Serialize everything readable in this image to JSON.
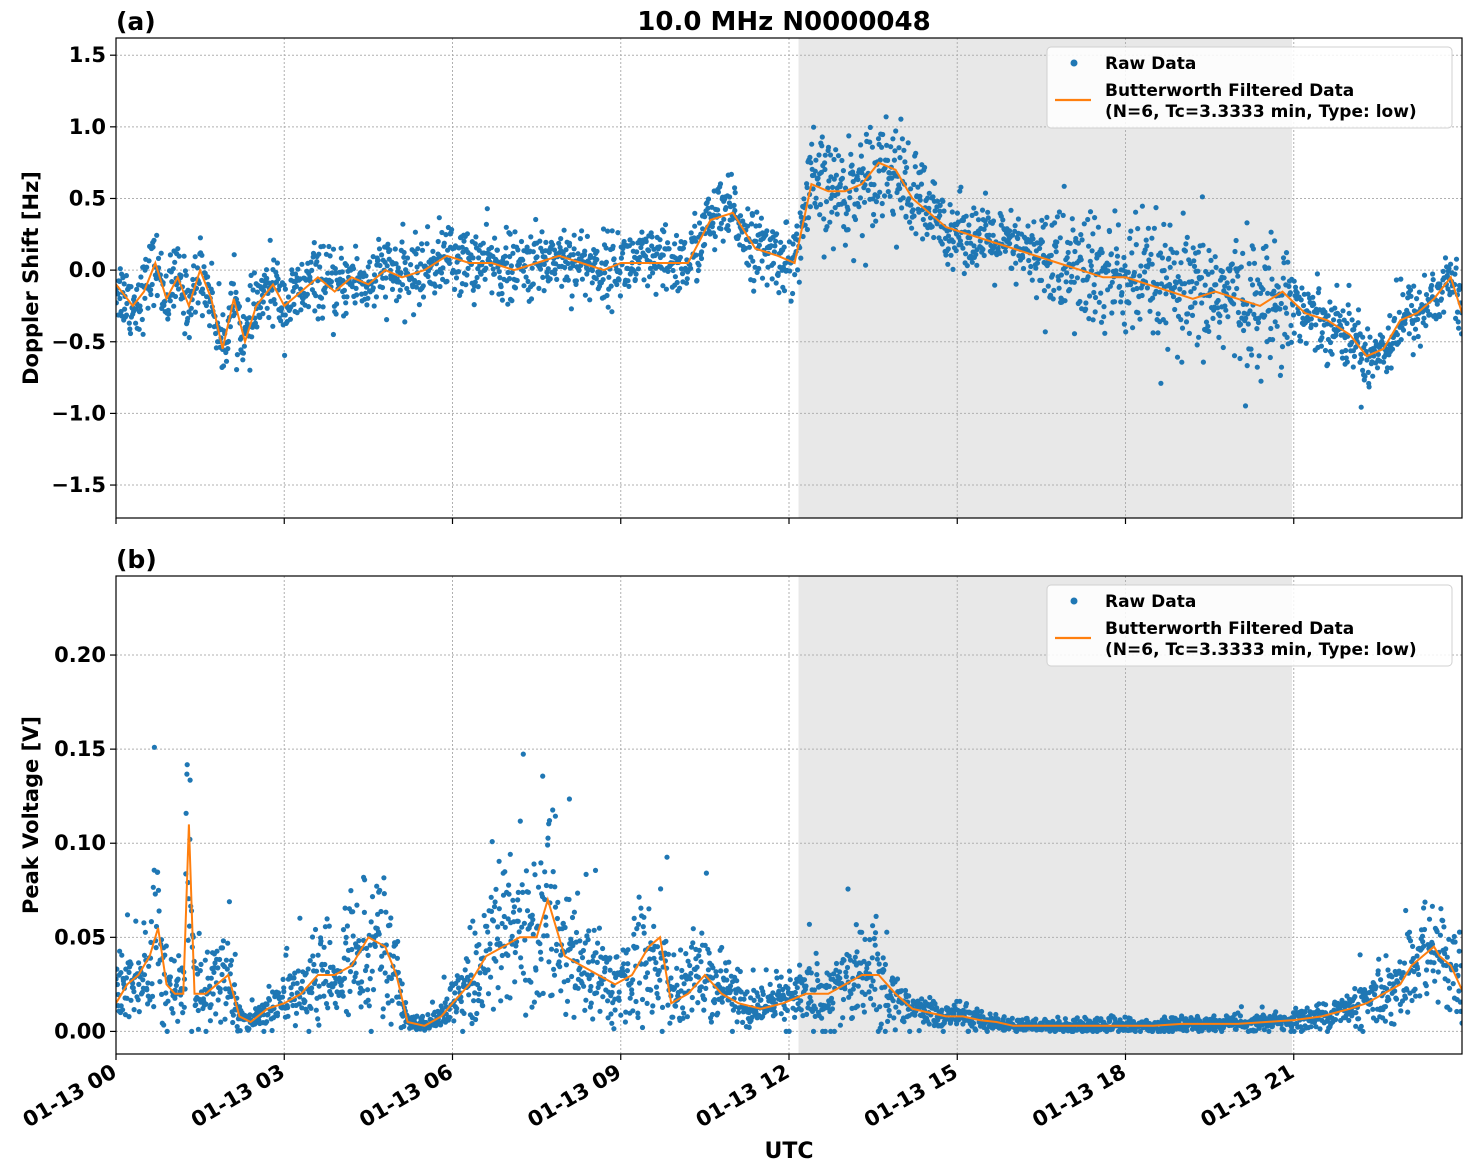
{
  "figure": {
    "title": "10.0 MHz N0000048",
    "xlabel": "UTC",
    "x_ticks": [
      "01-13 00",
      "01-13 03",
      "01-13 06",
      "01-13 09",
      "01-13 12",
      "01-13 15",
      "01-13 18",
      "01-13 21"
    ],
    "shaded_region_hours": [
      12.17,
      20.97
    ],
    "colors": {
      "raw": "#1f77b4",
      "filtered": "#ff7f0e",
      "shade": "#e8e8e8"
    }
  },
  "legend": {
    "raw": "Raw Data",
    "filtered_line1": "Butterworth Filtered Data",
    "filtered_line2": "(N=6, Tc=3.3333 min, Type: low)",
    "placement": "top-right"
  },
  "chart_data": [
    {
      "type": "scatter",
      "panel_label": "(a)",
      "ylabel": "Doppler Shift [Hz]",
      "ylim": [
        -1.73,
        1.62
      ],
      "y_ticks": [
        "1.5",
        "1.0",
        "0.5",
        "0.0",
        "−0.5",
        "−1.0",
        "−1.5"
      ],
      "y_tick_values": [
        1.5,
        1.0,
        0.5,
        0.0,
        -0.5,
        -1.0,
        -1.5
      ],
      "xlim_hours": [
        0,
        24
      ],
      "grid": true,
      "series": [
        {
          "name": "Butterworth Filtered Data",
          "x": [
            0,
            0.3,
            0.5,
            0.7,
            0.9,
            1.1,
            1.3,
            1.5,
            1.7,
            1.9,
            2.1,
            2.3,
            2.5,
            2.8,
            3.0,
            3.3,
            3.6,
            3.9,
            4.2,
            4.5,
            4.8,
            5.1,
            5.5,
            5.9,
            6.3,
            6.7,
            7.1,
            7.5,
            7.9,
            8.3,
            8.7,
            9.0,
            9.4,
            9.8,
            10.2,
            10.6,
            11.0,
            11.4,
            11.8,
            12.1,
            12.4,
            12.7,
            13.0,
            13.3,
            13.6,
            13.9,
            14.2,
            14.5,
            14.8,
            15.2,
            15.6,
            16.0,
            16.4,
            16.8,
            17.2,
            17.6,
            18.0,
            18.4,
            18.8,
            19.2,
            19.6,
            20.0,
            20.4,
            20.8,
            21.2,
            21.6,
            22.0,
            22.3,
            22.6,
            22.9,
            23.2,
            23.5,
            23.8,
            24.0
          ],
          "y": [
            -0.1,
            -0.25,
            -0.15,
            0.05,
            -0.2,
            -0.05,
            -0.25,
            0.0,
            -0.2,
            -0.55,
            -0.2,
            -0.5,
            -0.25,
            -0.1,
            -0.25,
            -0.15,
            -0.05,
            -0.15,
            -0.05,
            -0.1,
            0.0,
            -0.05,
            0.0,
            0.1,
            0.05,
            0.05,
            0.0,
            0.05,
            0.1,
            0.05,
            0.0,
            0.05,
            0.05,
            0.05,
            0.05,
            0.35,
            0.4,
            0.15,
            0.1,
            0.05,
            0.6,
            0.55,
            0.55,
            0.6,
            0.75,
            0.7,
            0.5,
            0.4,
            0.3,
            0.25,
            0.2,
            0.15,
            0.1,
            0.05,
            0.0,
            -0.05,
            -0.05,
            -0.1,
            -0.15,
            -0.2,
            -0.15,
            -0.2,
            -0.25,
            -0.15,
            -0.3,
            -0.35,
            -0.45,
            -0.6,
            -0.55,
            -0.35,
            -0.3,
            -0.2,
            -0.05,
            -0.3
          ]
        },
        {
          "name": "Raw Data",
          "spread_note_from_envelope": true
        }
      ]
    },
    {
      "type": "scatter",
      "panel_label": "(b)",
      "ylabel": "Peak Voltage [V]",
      "ylim": [
        -0.012,
        0.242
      ],
      "y_ticks": [
        "0.20",
        "0.15",
        "0.10",
        "0.05",
        "0.00"
      ],
      "y_tick_values": [
        0.2,
        0.15,
        0.1,
        0.05,
        0.0
      ],
      "xlim_hours": [
        0,
        24
      ],
      "grid": true,
      "series": [
        {
          "name": "Butterworth Filtered Data",
          "x": [
            0,
            0.2,
            0.4,
            0.6,
            0.75,
            0.9,
            1.05,
            1.2,
            1.3,
            1.4,
            1.6,
            1.8,
            2.0,
            2.2,
            2.4,
            2.7,
            3.0,
            3.3,
            3.6,
            3.9,
            4.2,
            4.5,
            4.8,
            5.0,
            5.2,
            5.5,
            5.8,
            6.0,
            6.3,
            6.6,
            6.9,
            7.2,
            7.5,
            7.7,
            8.0,
            8.3,
            8.6,
            8.9,
            9.2,
            9.5,
            9.7,
            9.9,
            10.2,
            10.5,
            10.8,
            11.1,
            11.5,
            11.9,
            12.3,
            12.7,
            13.0,
            13.3,
            13.6,
            13.9,
            14.2,
            14.5,
            14.8,
            15.1,
            15.4,
            15.7,
            16.0,
            16.5,
            17.0,
            17.5,
            18.0,
            18.5,
            19.0,
            19.5,
            20.0,
            20.5,
            21.0,
            21.5,
            22.0,
            22.3,
            22.6,
            22.9,
            23.1,
            23.3,
            23.5,
            23.6,
            23.8,
            24.0
          ],
          "y": [
            0.015,
            0.025,
            0.03,
            0.04,
            0.055,
            0.025,
            0.02,
            0.02,
            0.11,
            0.02,
            0.02,
            0.025,
            0.03,
            0.008,
            0.005,
            0.012,
            0.015,
            0.02,
            0.03,
            0.03,
            0.035,
            0.05,
            0.045,
            0.03,
            0.005,
            0.003,
            0.008,
            0.015,
            0.025,
            0.04,
            0.045,
            0.05,
            0.05,
            0.07,
            0.04,
            0.035,
            0.03,
            0.025,
            0.03,
            0.045,
            0.05,
            0.015,
            0.02,
            0.03,
            0.02,
            0.015,
            0.012,
            0.015,
            0.02,
            0.02,
            0.025,
            0.03,
            0.03,
            0.02,
            0.012,
            0.01,
            0.008,
            0.008,
            0.006,
            0.005,
            0.003,
            0.003,
            0.003,
            0.003,
            0.003,
            0.003,
            0.004,
            0.004,
            0.004,
            0.005,
            0.006,
            0.008,
            0.012,
            0.015,
            0.02,
            0.025,
            0.035,
            0.04,
            0.045,
            0.04,
            0.035,
            0.022
          ]
        },
        {
          "name": "Raw Data",
          "spread_note_from_envelope": true
        }
      ]
    }
  ]
}
